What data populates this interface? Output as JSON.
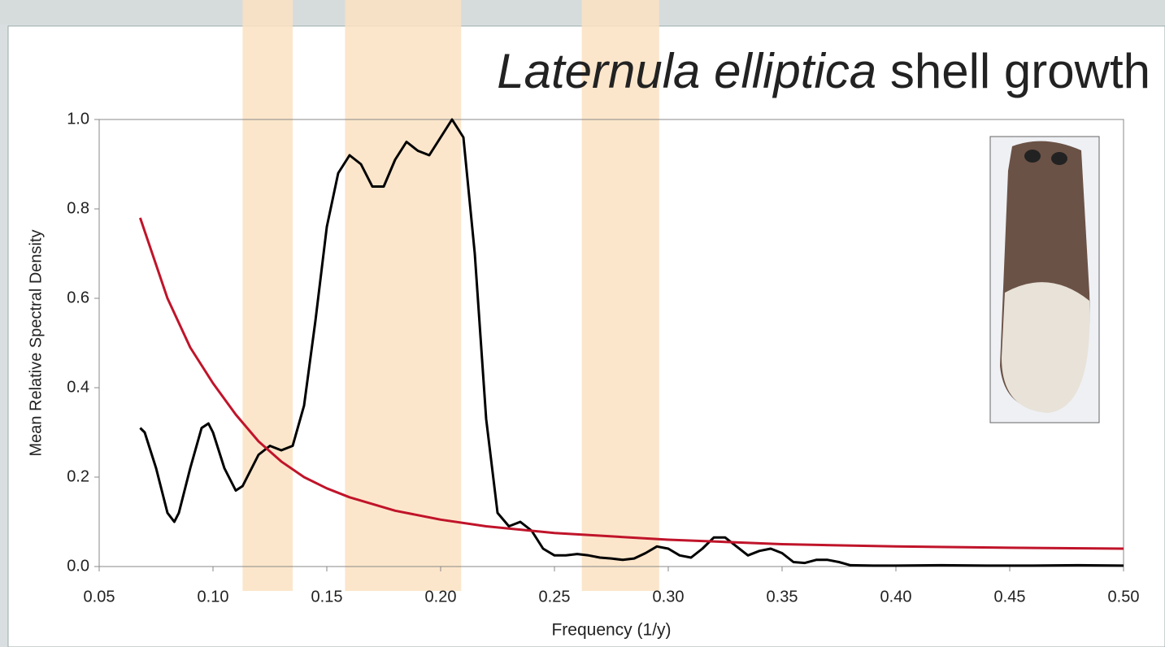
{
  "chart_data": {
    "type": "line",
    "title_parts": [
      "Laternula elliptica",
      "shell growth"
    ],
    "x_label": "Frequency (1/y)",
    "y_label": "Mean Relative Spectral Density",
    "xlim": [
      0.05,
      0.5
    ],
    "ylim": [
      0,
      1.0
    ],
    "xticks": [
      0.05,
      {
        "value": 0.1,
        "label": "0.10"
      },
      0.15,
      {
        "value": 0.2,
        "label": "0.20"
      },
      0.25,
      {
        "value": 0.3,
        "label": "0.30"
      },
      0.35,
      {
        "value": 0.4,
        "label": "0.40"
      },
      0.45,
      {
        "value": 0.5,
        "label": "0.50"
      }
    ],
    "yticks": [
      {
        "value": 0,
        "label": "0.0"
      },
      0.2,
      0.4,
      0.6,
      0.8,
      {
        "value": 1,
        "label": "1.0"
      }
    ],
    "bands": [
      [
        0.113,
        0.135
      ],
      [
        0.158,
        0.209
      ],
      [
        0.262,
        0.296
      ]
    ],
    "band_color": "#fbe2c2",
    "series": [
      {
        "color": "#000000",
        "x": [
          0.068,
          0.07,
          0.075,
          0.08,
          0.083,
          0.085,
          0.09,
          0.095,
          0.098,
          0.1,
          0.105,
          0.11,
          0.113,
          0.115,
          0.12,
          0.125,
          0.13,
          0.135,
          0.14,
          0.145,
          0.15,
          0.155,
          0.16,
          0.165,
          0.17,
          0.175,
          0.18,
          0.185,
          0.19,
          0.195,
          0.2,
          0.205,
          0.21,
          0.215,
          0.22,
          0.225,
          0.23,
          0.235,
          0.24,
          0.245,
          0.25,
          0.255,
          0.26,
          0.265,
          0.27,
          0.275,
          0.28,
          0.285,
          0.29,
          0.295,
          0.3,
          0.305,
          0.31,
          0.315,
          0.32,
          0.325,
          0.33,
          0.335,
          0.34,
          0.345,
          0.35,
          0.355,
          0.36,
          0.365,
          0.37,
          0.375,
          0.38,
          0.39,
          0.4,
          0.42,
          0.44,
          0.46,
          0.48,
          0.5
        ],
        "values": [
          0.31,
          0.3,
          0.22,
          0.12,
          0.1,
          0.12,
          0.22,
          0.31,
          0.32,
          0.3,
          0.22,
          0.17,
          0.18,
          0.2,
          0.25,
          0.27,
          0.26,
          0.27,
          0.36,
          0.55,
          0.76,
          0.88,
          0.92,
          0.9,
          0.85,
          0.85,
          0.91,
          0.95,
          0.93,
          0.92,
          0.96,
          1.0,
          0.96,
          0.7,
          0.33,
          0.12,
          0.09,
          0.1,
          0.08,
          0.04,
          0.025,
          0.025,
          0.028,
          0.025,
          0.02,
          0.018,
          0.015,
          0.018,
          0.03,
          0.045,
          0.04,
          0.025,
          0.02,
          0.04,
          0.065,
          0.065,
          0.045,
          0.025,
          0.035,
          0.04,
          0.03,
          0.01,
          0.008,
          0.015,
          0.015,
          0.01,
          0.003,
          0.002,
          0.002,
          0.003,
          0.002,
          0.002,
          0.003,
          0.002
        ]
      },
      {
        "color": "#c0142a",
        "x": [
          0.068,
          0.08,
          0.09,
          0.1,
          0.11,
          0.12,
          0.13,
          0.14,
          0.15,
          0.16,
          0.18,
          0.2,
          0.22,
          0.25,
          0.3,
          0.35,
          0.4,
          0.45,
          0.5
        ],
        "values": [
          0.78,
          0.6,
          0.49,
          0.41,
          0.34,
          0.28,
          0.235,
          0.2,
          0.175,
          0.155,
          0.125,
          0.105,
          0.09,
          0.075,
          0.06,
          0.05,
          0.045,
          0.042,
          0.04
        ]
      }
    ]
  }
}
